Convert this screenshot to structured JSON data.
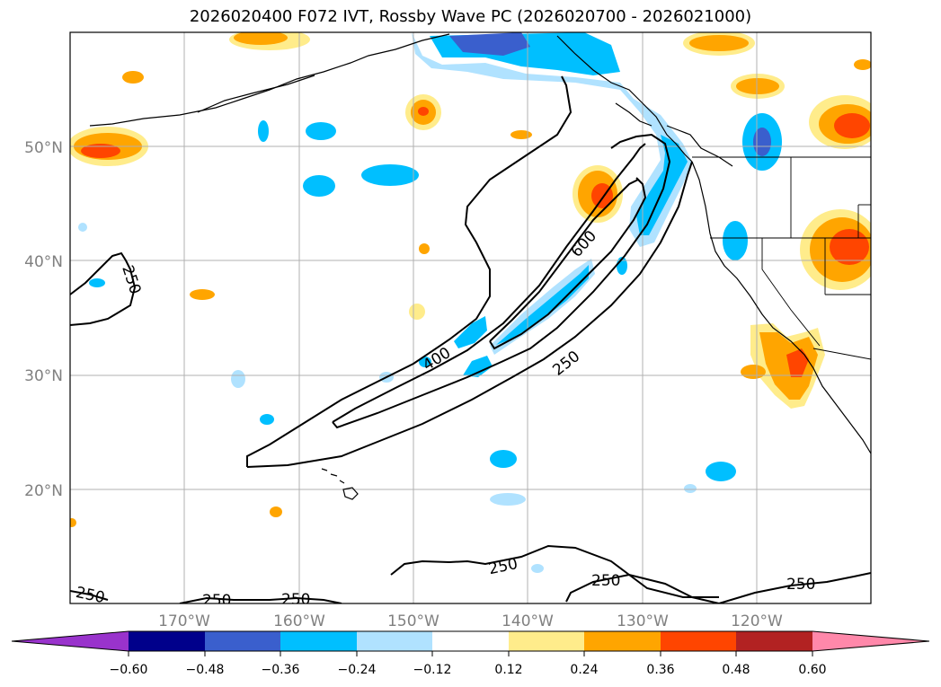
{
  "title": "2026020400 F072 IVT, Rossby Wave PC (2026020700 - 2026021000)",
  "axes": {
    "lon_labels": [
      "170°W",
      "160°W",
      "150°W",
      "140°W",
      "130°W",
      "120°W"
    ],
    "lat_labels": [
      "50°N",
      "40°N",
      "30°N",
      "20°N"
    ]
  },
  "contour_labels": [
    "250",
    "250",
    "400",
    "600",
    "250",
    "250",
    "250",
    "250",
    "250",
    "250",
    "250"
  ],
  "colorbar": {
    "ticks": [
      "−0.60",
      "−0.48",
      "−0.36",
      "−0.24",
      "−0.12",
      "0.12",
      "0.24",
      "0.36",
      "0.48",
      "0.60"
    ],
    "colors": [
      "#9933cc",
      "#00008b",
      "#3a5fcd",
      "#00bfff",
      "#b0e2ff",
      "#ffffff",
      "#ffec8b",
      "#ffa500",
      "#ff4500",
      "#b22222",
      "#ff88aa",
      "#ff88aa"
    ]
  }
}
